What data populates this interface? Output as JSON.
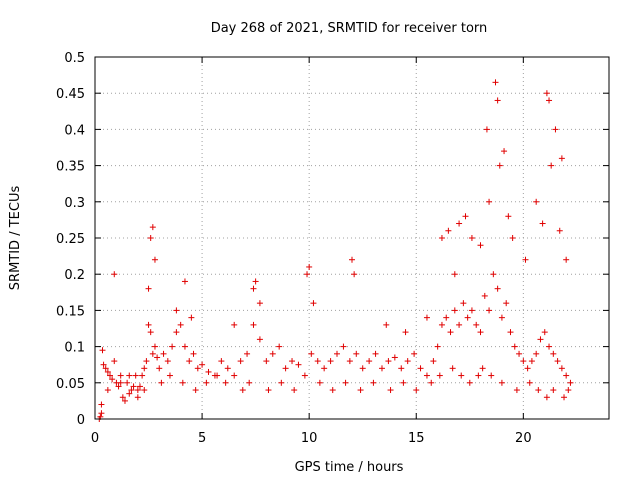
{
  "chart_data": {
    "type": "scatter",
    "title": "Day 268 of 2021, SRMTID for receiver torn",
    "xlabel": "GPS time / hours",
    "ylabel": "SRMTID / TECUs",
    "xlim": [
      0,
      24
    ],
    "ylim": [
      0,
      0.5
    ],
    "xticks": [
      "0",
      "5",
      "10",
      "15",
      "20"
    ],
    "yticks": [
      "0",
      "0.05",
      "0.1",
      "0.15",
      "0.2",
      "0.25",
      "0.3",
      "0.35",
      "0.4",
      "0.45",
      "0.5"
    ],
    "grid": true,
    "marker": "+",
    "color": "#e00000",
    "series": [
      {
        "x": [
          0.2,
          0.25,
          0.3,
          0.35,
          0.4,
          0.5,
          0.6,
          0.7,
          0.8,
          0.9,
          1.0,
          1.1,
          1.2,
          1.3,
          1.4,
          1.5,
          1.6,
          1.7,
          1.8,
          1.9,
          2.0,
          2.1,
          2.2,
          2.3,
          2.4,
          2.5,
          2.6,
          2.7,
          2.8,
          2.9,
          3.0,
          3.2,
          3.4,
          3.6,
          3.8,
          4.0,
          4.2,
          4.4,
          4.6,
          4.8,
          5.0,
          5.3,
          5.6,
          5.9,
          6.2,
          6.5,
          6.8,
          7.1,
          7.4,
          7.7,
          8.0,
          8.3,
          8.6,
          8.9,
          9.2,
          9.5,
          9.8,
          10.1,
          10.4,
          10.7,
          11.0,
          11.3,
          11.6,
          11.9,
          12.2,
          12.5,
          12.8,
          13.1,
          13.4,
          13.7,
          14.0,
          14.3,
          14.6,
          14.9,
          15.2,
          15.5,
          15.8,
          16.0,
          16.2,
          16.4,
          16.6,
          16.8,
          17.0,
          17.2,
          17.4,
          17.6,
          17.8,
          18.0,
          18.2,
          18.4,
          18.6,
          18.8,
          19.0,
          19.2,
          19.4,
          19.6,
          19.8,
          20.0,
          20.2,
          20.4,
          20.6,
          20.8,
          21.0,
          21.2,
          21.4,
          21.6,
          21.8,
          22.0,
          22.2,
          0.9,
          2.6,
          2.7,
          4.2,
          7.5,
          10.0,
          12.0,
          16.5,
          17.0,
          18.3,
          18.7,
          18.8,
          19.1,
          21.1,
          21.2,
          21.5,
          21.8,
          2.5,
          2.8,
          3.8,
          4.5,
          6.5,
          7.4,
          7.7,
          9.9,
          10.2,
          12.1,
          13.6,
          14.5,
          15.5,
          16.2,
          16.8,
          17.3,
          17.6,
          18.0,
          18.4,
          18.9,
          19.3,
          19.5,
          20.1,
          20.6,
          20.9,
          21.3,
          21.7,
          22.0,
          0.3,
          0.6,
          1.2,
          1.6,
          2.0,
          2.3,
          3.1,
          3.5,
          4.1,
          4.7,
          5.2,
          5.7,
          6.1,
          6.9,
          7.2,
          8.1,
          8.7,
          9.3,
          10.5,
          11.1,
          11.7,
          12.4,
          13.0,
          13.8,
          14.4,
          15.0,
          15.7,
          16.1,
          16.7,
          17.1,
          17.5,
          17.9,
          18.1,
          18.5,
          19.0,
          19.7,
          20.3,
          20.7,
          21.1,
          21.4,
          21.9,
          22.1
        ],
        "y": [
          0.0,
          0.003,
          0.008,
          0.095,
          0.075,
          0.07,
          0.065,
          0.06,
          0.055,
          0.08,
          0.05,
          0.045,
          0.06,
          0.03,
          0.025,
          0.05,
          0.035,
          0.04,
          0.045,
          0.06,
          0.04,
          0.045,
          0.06,
          0.07,
          0.08,
          0.13,
          0.12,
          0.09,
          0.1,
          0.085,
          0.07,
          0.09,
          0.08,
          0.1,
          0.12,
          0.13,
          0.1,
          0.08,
          0.09,
          0.07,
          0.075,
          0.065,
          0.06,
          0.08,
          0.07,
          0.06,
          0.08,
          0.09,
          0.13,
          0.11,
          0.08,
          0.09,
          0.1,
          0.07,
          0.08,
          0.075,
          0.06,
          0.09,
          0.08,
          0.07,
          0.08,
          0.09,
          0.1,
          0.08,
          0.09,
          0.07,
          0.08,
          0.09,
          0.07,
          0.08,
          0.085,
          0.07,
          0.08,
          0.09,
          0.07,
          0.06,
          0.08,
          0.1,
          0.13,
          0.14,
          0.12,
          0.15,
          0.13,
          0.16,
          0.14,
          0.15,
          0.13,
          0.12,
          0.17,
          0.15,
          0.2,
          0.18,
          0.14,
          0.16,
          0.12,
          0.1,
          0.09,
          0.08,
          0.07,
          0.08,
          0.09,
          0.11,
          0.12,
          0.1,
          0.09,
          0.08,
          0.07,
          0.06,
          0.05,
          0.2,
          0.25,
          0.265,
          0.19,
          0.19,
          0.21,
          0.22,
          0.26,
          0.27,
          0.4,
          0.465,
          0.44,
          0.37,
          0.45,
          0.44,
          0.4,
          0.36,
          0.18,
          0.22,
          0.15,
          0.14,
          0.13,
          0.18,
          0.16,
          0.2,
          0.16,
          0.2,
          0.13,
          0.12,
          0.14,
          0.25,
          0.2,
          0.28,
          0.25,
          0.24,
          0.3,
          0.35,
          0.28,
          0.25,
          0.22,
          0.3,
          0.27,
          0.35,
          0.26,
          0.22,
          0.02,
          0.04,
          0.05,
          0.06,
          0.03,
          0.04,
          0.05,
          0.06,
          0.05,
          0.04,
          0.05,
          0.06,
          0.05,
          0.04,
          0.05,
          0.04,
          0.05,
          0.04,
          0.05,
          0.04,
          0.05,
          0.04,
          0.05,
          0.04,
          0.05,
          0.04,
          0.05,
          0.06,
          0.07,
          0.06,
          0.05,
          0.06,
          0.07,
          0.06,
          0.05,
          0.04,
          0.05,
          0.04,
          0.03,
          0.04,
          0.03,
          0.04
        ]
      }
    ]
  }
}
